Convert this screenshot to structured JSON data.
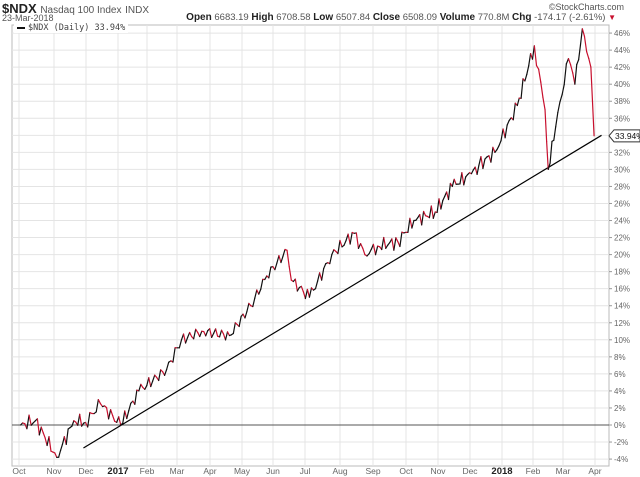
{
  "header": {
    "symbol": "$NDX",
    "name": "Nasdaq 100 Index",
    "exchange": "INDX",
    "date": "23-Mar-2018",
    "logo": "©StockCharts.com",
    "quote": {
      "open_label": "Open",
      "open": "6683.19",
      "high_label": "High",
      "high": "6708.58",
      "low_label": "Low",
      "low": "6507.84",
      "close_label": "Close",
      "close": "6508.09",
      "volume_label": "Volume",
      "volume": "770.8M",
      "chg_label": "Chg",
      "chg": "-174.17 (-2.61%)",
      "chg_icon": "down-triangle-icon"
    }
  },
  "legend": {
    "label": "$NDX (Daily) 33.94%"
  },
  "last_value_tag": "33.94%",
  "colors": {
    "up": "#111111",
    "down": "#c8102e",
    "grid": "#e4e4e4",
    "zero_line": "#555555",
    "trend_line": "#000000"
  },
  "chart_data": {
    "type": "line",
    "title": "$NDX Nasdaq 100 Index INDX",
    "subtitle": "23-Mar-2018",
    "series": [
      {
        "name": "$NDX (Daily) % change",
        "x": [
          "2016-10-01",
          "2016-10-15",
          "2016-11-04",
          "2016-11-20",
          "2016-12-01",
          "2016-12-15",
          "2017-01-03",
          "2017-01-20",
          "2017-02-15",
          "2017-03-01",
          "2017-03-20",
          "2017-04-15",
          "2017-05-05",
          "2017-05-20",
          "2017-06-08",
          "2017-06-12",
          "2017-06-29",
          "2017-07-20",
          "2017-08-10",
          "2017-08-20",
          "2017-09-01",
          "2017-09-20",
          "2017-10-05",
          "2017-10-25",
          "2017-11-10",
          "2017-11-28",
          "2017-12-05",
          "2017-12-20",
          "2018-01-10",
          "2018-01-26",
          "2018-02-05",
          "2018-02-08",
          "2018-02-15",
          "2018-02-27",
          "2018-03-05",
          "2018-03-12",
          "2018-03-20",
          "2018-03-23"
        ],
        "values": [
          0.0,
          0.5,
          -3.8,
          0.5,
          0.3,
          2.5,
          0.0,
          4.0,
          6.5,
          10.0,
          11.0,
          10.5,
          14.0,
          17.5,
          20.5,
          17.0,
          15.0,
          20.0,
          22.5,
          20.0,
          21.0,
          21.5,
          24.0,
          25.0,
          28.0,
          29.5,
          30.5,
          32.0,
          37.5,
          44.5,
          37.0,
          30.0,
          35.0,
          43.0,
          40.0,
          46.5,
          42.0,
          33.94
        ]
      },
      {
        "name": "Trend line",
        "x": [
          "2016-11-29",
          "2018-03-30"
        ],
        "values": [
          -2.7,
          34.0
        ]
      }
    ],
    "xlabel": "",
    "ylabel": "",
    "x_tick_labels": [
      "Oct",
      "Nov",
      "Dec",
      "2017",
      "Feb",
      "Mar",
      "Apr",
      "May",
      "Jun",
      "Jul",
      "Aug",
      "Sep",
      "Oct",
      "Nov",
      "Dec",
      "2018",
      "Feb",
      "Mar",
      "Apr"
    ],
    "y_tick_labels": [
      "46%",
      "44%",
      "42%",
      "40%",
      "38%",
      "36%",
      "34%",
      "32%",
      "30%",
      "28%",
      "26%",
      "24%",
      "22%",
      "20%",
      "18%",
      "16%",
      "14%",
      "12%",
      "10%",
      "8%",
      "6%",
      "4%",
      "2%",
      "0%",
      "-2%",
      "-4%"
    ],
    "ylim": [
      -4.5,
      47
    ],
    "grid": true,
    "legend_position": "top-left",
    "annotations": [
      "33.94% last value tag"
    ]
  }
}
